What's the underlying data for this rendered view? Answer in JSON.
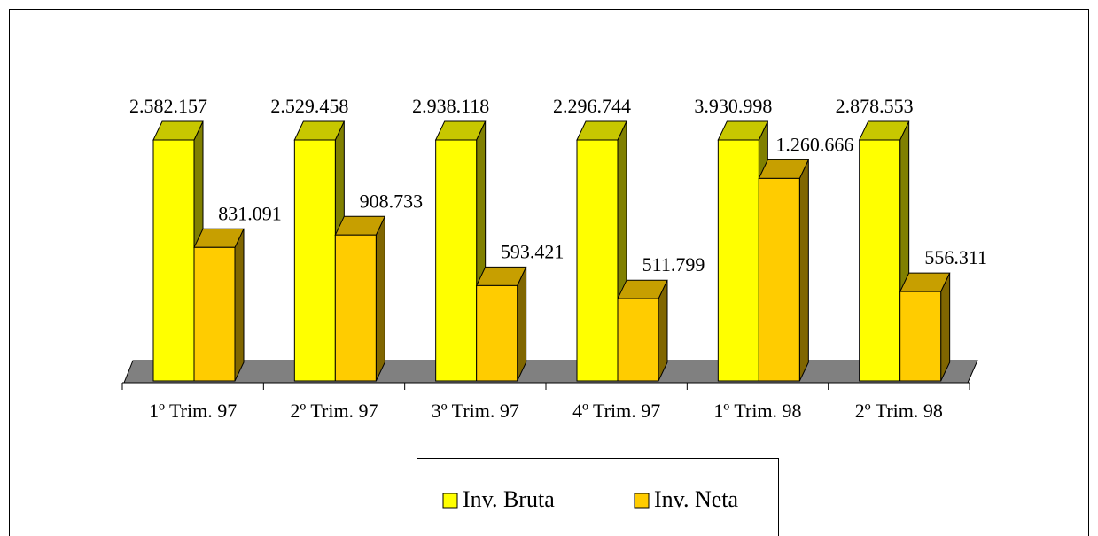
{
  "chart_data": {
    "type": "bar3d",
    "categories": [
      "1º Trim. 97",
      "2º Trim. 97",
      "3º Trim. 97",
      "4º Trim. 97",
      "1º Trim. 98",
      "2º Trim. 98"
    ],
    "series": [
      {
        "name": "Inv. Bruta",
        "color": "#ffff00",
        "values": [
          2582157,
          2529458,
          2938118,
          2296744,
          3930998,
          2878553
        ],
        "value_labels": [
          "2.582.157",
          "2.529.458",
          "2.938.118",
          "2.296.744",
          "3.930.998",
          "2.878.553"
        ]
      },
      {
        "name": "Inv. Neta",
        "color": "#ffcc00",
        "values": [
          831091,
          908733,
          593421,
          511799,
          1260666,
          556311
        ],
        "value_labels": [
          "831.091",
          "908.733",
          "593.421",
          "511.799",
          "1.260.666",
          "556.311"
        ]
      }
    ],
    "ylim": [
      0,
      1500000
    ],
    "legend": "bottom"
  }
}
